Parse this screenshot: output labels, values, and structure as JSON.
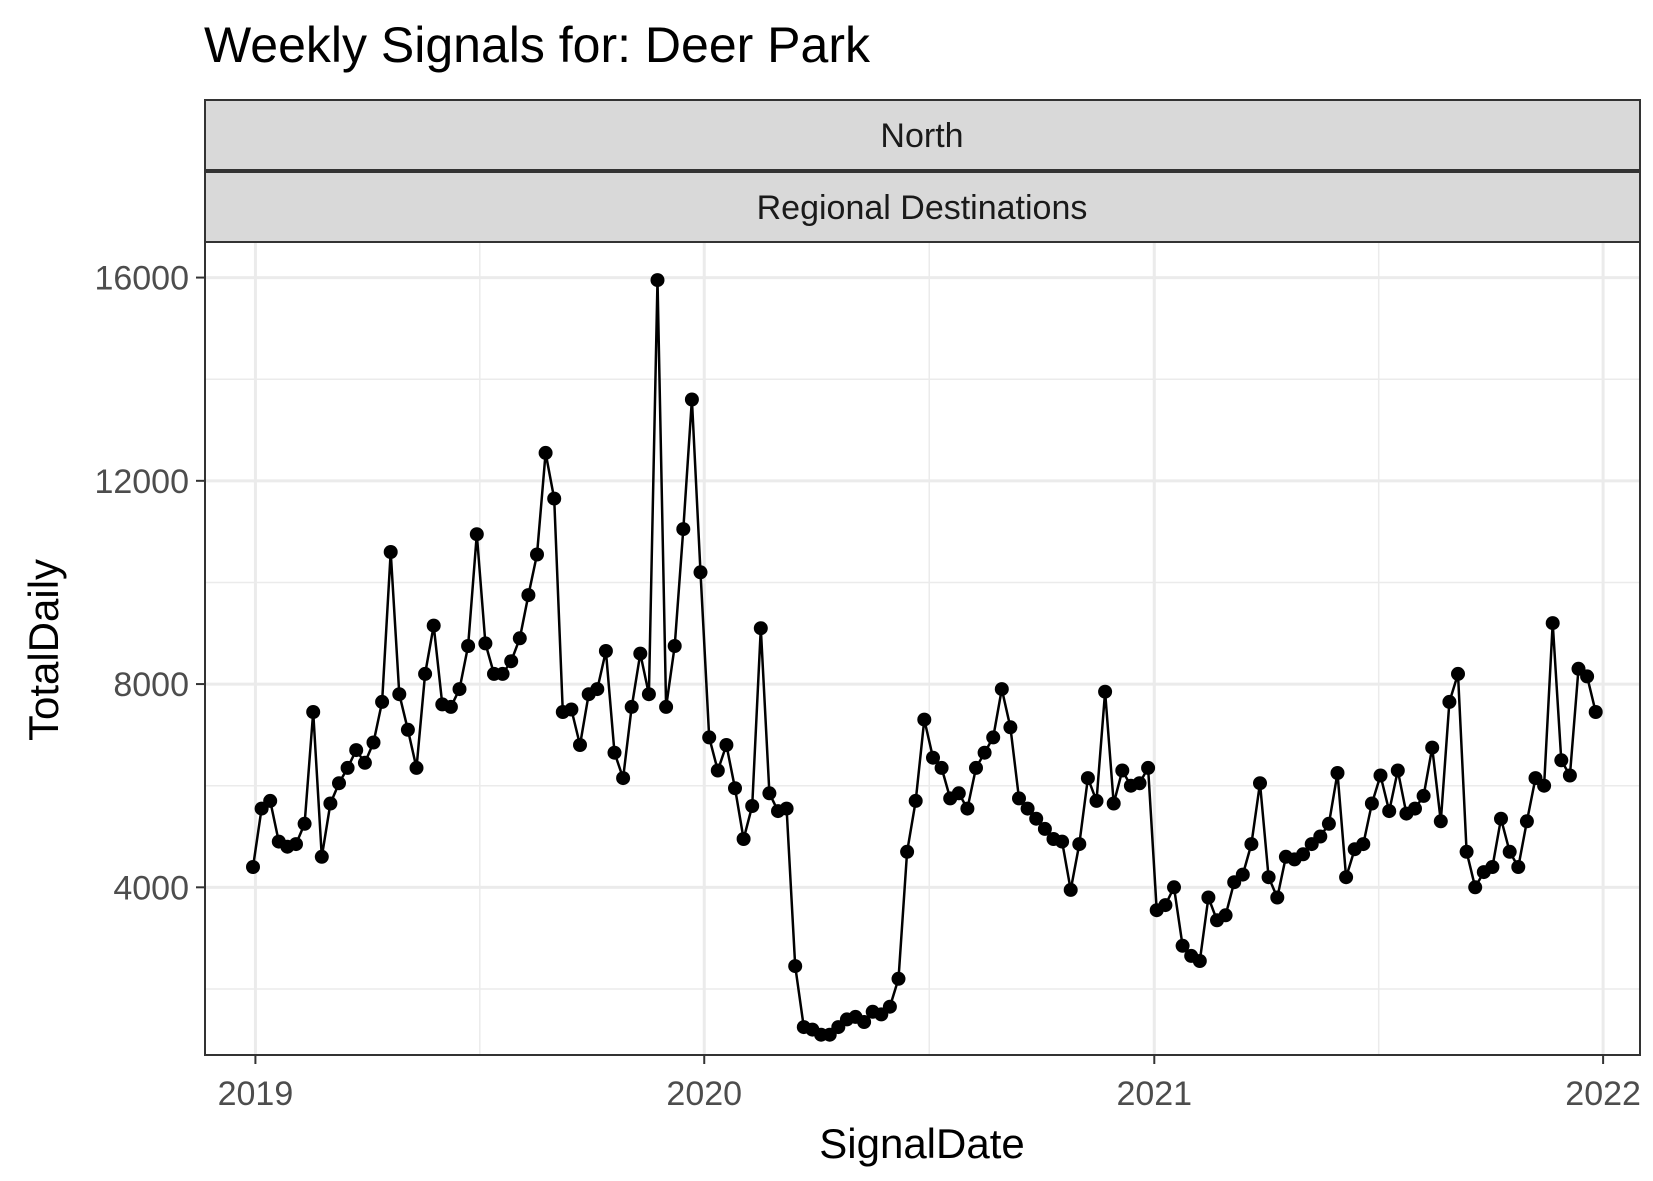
{
  "chart_data": {
    "type": "line",
    "title": "Weekly Signals for: Deer Park",
    "facets": [
      "North",
      "Regional Destinations"
    ],
    "xlabel": "SignalDate",
    "ylabel": "TotalDaily",
    "x_ticks": [
      "2019",
      "2020",
      "2021",
      "2022"
    ],
    "y_ticks": [
      "4000",
      "8000",
      "12000",
      "16000"
    ],
    "xlim": [
      "2018-11-21",
      "2022-01-31"
    ],
    "ylim": [
      700,
      16700
    ],
    "grid": true,
    "series": [
      {
        "marker": "circle",
        "color": "#000000",
        "points": [
          [
            "2018-12-30",
            4400
          ],
          [
            "2019-01-06",
            5550
          ],
          [
            "2019-01-13",
            5700
          ],
          [
            "2019-01-20",
            4900
          ],
          [
            "2019-01-27",
            4800
          ],
          [
            "2019-02-03",
            4850
          ],
          [
            "2019-02-10",
            5250
          ],
          [
            "2019-02-17",
            7450
          ],
          [
            "2019-02-24",
            4600
          ],
          [
            "2019-03-03",
            5650
          ],
          [
            "2019-03-10",
            6050
          ],
          [
            "2019-03-17",
            6350
          ],
          [
            "2019-03-24",
            6700
          ],
          [
            "2019-03-31",
            6450
          ],
          [
            "2019-04-07",
            6850
          ],
          [
            "2019-04-14",
            7650
          ],
          [
            "2019-04-21",
            10600
          ],
          [
            "2019-04-28",
            7800
          ],
          [
            "2019-05-05",
            7100
          ],
          [
            "2019-05-12",
            6350
          ],
          [
            "2019-05-19",
            8200
          ],
          [
            "2019-05-26",
            9150
          ],
          [
            "2019-06-02",
            7600
          ],
          [
            "2019-06-09",
            7550
          ],
          [
            "2019-06-16",
            7900
          ],
          [
            "2019-06-23",
            8750
          ],
          [
            "2019-06-30",
            10950
          ],
          [
            "2019-07-07",
            8800
          ],
          [
            "2019-07-14",
            8200
          ],
          [
            "2019-07-21",
            8200
          ],
          [
            "2019-07-28",
            8450
          ],
          [
            "2019-08-04",
            8900
          ],
          [
            "2019-08-11",
            9750
          ],
          [
            "2019-08-18",
            10550
          ],
          [
            "2019-08-25",
            12550
          ],
          [
            "2019-09-01",
            11650
          ],
          [
            "2019-09-08",
            7450
          ],
          [
            "2019-09-15",
            7500
          ],
          [
            "2019-09-22",
            6800
          ],
          [
            "2019-09-29",
            7800
          ],
          [
            "2019-10-06",
            7900
          ],
          [
            "2019-10-13",
            8650
          ],
          [
            "2019-10-20",
            6650
          ],
          [
            "2019-10-27",
            6150
          ],
          [
            "2019-11-03",
            7550
          ],
          [
            "2019-11-10",
            8600
          ],
          [
            "2019-11-17",
            7800
          ],
          [
            "2019-11-24",
            15950
          ],
          [
            "2019-12-01",
            7550
          ],
          [
            "2019-12-08",
            8750
          ],
          [
            "2019-12-15",
            11050
          ],
          [
            "2019-12-22",
            13600
          ],
          [
            "2019-12-29",
            10200
          ],
          [
            "2020-01-05",
            6950
          ],
          [
            "2020-01-12",
            6300
          ],
          [
            "2020-01-19",
            6800
          ],
          [
            "2020-01-26",
            5950
          ],
          [
            "2020-02-02",
            4950
          ],
          [
            "2020-02-09",
            5600
          ],
          [
            "2020-02-16",
            9100
          ],
          [
            "2020-02-23",
            5850
          ],
          [
            "2020-03-01",
            5500
          ],
          [
            "2020-03-08",
            5550
          ],
          [
            "2020-03-15",
            2450
          ],
          [
            "2020-03-22",
            1250
          ],
          [
            "2020-03-29",
            1200
          ],
          [
            "2020-04-05",
            1100
          ],
          [
            "2020-04-12",
            1100
          ],
          [
            "2020-04-19",
            1250
          ],
          [
            "2020-04-26",
            1400
          ],
          [
            "2020-05-03",
            1450
          ],
          [
            "2020-05-10",
            1350
          ],
          [
            "2020-05-17",
            1550
          ],
          [
            "2020-05-24",
            1500
          ],
          [
            "2020-05-31",
            1650
          ],
          [
            "2020-06-07",
            2200
          ],
          [
            "2020-06-14",
            4700
          ],
          [
            "2020-06-21",
            5700
          ],
          [
            "2020-06-28",
            7300
          ],
          [
            "2020-07-05",
            6550
          ],
          [
            "2020-07-12",
            6350
          ],
          [
            "2020-07-19",
            5750
          ],
          [
            "2020-07-26",
            5850
          ],
          [
            "2020-08-02",
            5550
          ],
          [
            "2020-08-09",
            6350
          ],
          [
            "2020-08-16",
            6650
          ],
          [
            "2020-08-23",
            6950
          ],
          [
            "2020-08-30",
            7900
          ],
          [
            "2020-09-06",
            7150
          ],
          [
            "2020-09-13",
            5750
          ],
          [
            "2020-09-20",
            5550
          ],
          [
            "2020-09-27",
            5350
          ],
          [
            "2020-10-04",
            5150
          ],
          [
            "2020-10-11",
            4950
          ],
          [
            "2020-10-18",
            4900
          ],
          [
            "2020-10-25",
            3950
          ],
          [
            "2020-11-01",
            4850
          ],
          [
            "2020-11-08",
            6150
          ],
          [
            "2020-11-15",
            5700
          ],
          [
            "2020-11-22",
            7850
          ],
          [
            "2020-11-29",
            5650
          ],
          [
            "2020-12-06",
            6300
          ],
          [
            "2020-12-13",
            6000
          ],
          [
            "2020-12-20",
            6050
          ],
          [
            "2020-12-27",
            6350
          ],
          [
            "2021-01-03",
            3550
          ],
          [
            "2021-01-10",
            3650
          ],
          [
            "2021-01-17",
            4000
          ],
          [
            "2021-01-24",
            2850
          ],
          [
            "2021-01-31",
            2650
          ],
          [
            "2021-02-07",
            2550
          ],
          [
            "2021-02-14",
            3800
          ],
          [
            "2021-02-21",
            3350
          ],
          [
            "2021-02-28",
            3450
          ],
          [
            "2021-03-07",
            4100
          ],
          [
            "2021-03-14",
            4250
          ],
          [
            "2021-03-21",
            4850
          ],
          [
            "2021-03-28",
            6050
          ],
          [
            "2021-04-04",
            4200
          ],
          [
            "2021-04-11",
            3800
          ],
          [
            "2021-04-18",
            4600
          ],
          [
            "2021-04-25",
            4550
          ],
          [
            "2021-05-02",
            4650
          ],
          [
            "2021-05-09",
            4850
          ],
          [
            "2021-05-16",
            5000
          ],
          [
            "2021-05-23",
            5250
          ],
          [
            "2021-05-30",
            6250
          ],
          [
            "2021-06-06",
            4200
          ],
          [
            "2021-06-13",
            4750
          ],
          [
            "2021-06-20",
            4850
          ],
          [
            "2021-06-27",
            5650
          ],
          [
            "2021-07-04",
            6200
          ],
          [
            "2021-07-11",
            5500
          ],
          [
            "2021-07-18",
            6300
          ],
          [
            "2021-07-25",
            5450
          ],
          [
            "2021-08-01",
            5550
          ],
          [
            "2021-08-08",
            5800
          ],
          [
            "2021-08-15",
            6750
          ],
          [
            "2021-08-22",
            5300
          ],
          [
            "2021-08-29",
            7650
          ],
          [
            "2021-09-05",
            8200
          ],
          [
            "2021-09-12",
            4700
          ],
          [
            "2021-09-19",
            4000
          ],
          [
            "2021-09-26",
            4300
          ],
          [
            "2021-10-03",
            4400
          ],
          [
            "2021-10-10",
            5350
          ],
          [
            "2021-10-17",
            4700
          ],
          [
            "2021-10-24",
            4400
          ],
          [
            "2021-10-31",
            5300
          ],
          [
            "2021-11-07",
            6150
          ],
          [
            "2021-11-14",
            6000
          ],
          [
            "2021-11-21",
            9200
          ],
          [
            "2021-11-28",
            6500
          ],
          [
            "2021-12-05",
            6200
          ],
          [
            "2021-12-12",
            8300
          ],
          [
            "2021-12-19",
            8150
          ],
          [
            "2021-12-26",
            7450
          ]
        ]
      }
    ]
  }
}
